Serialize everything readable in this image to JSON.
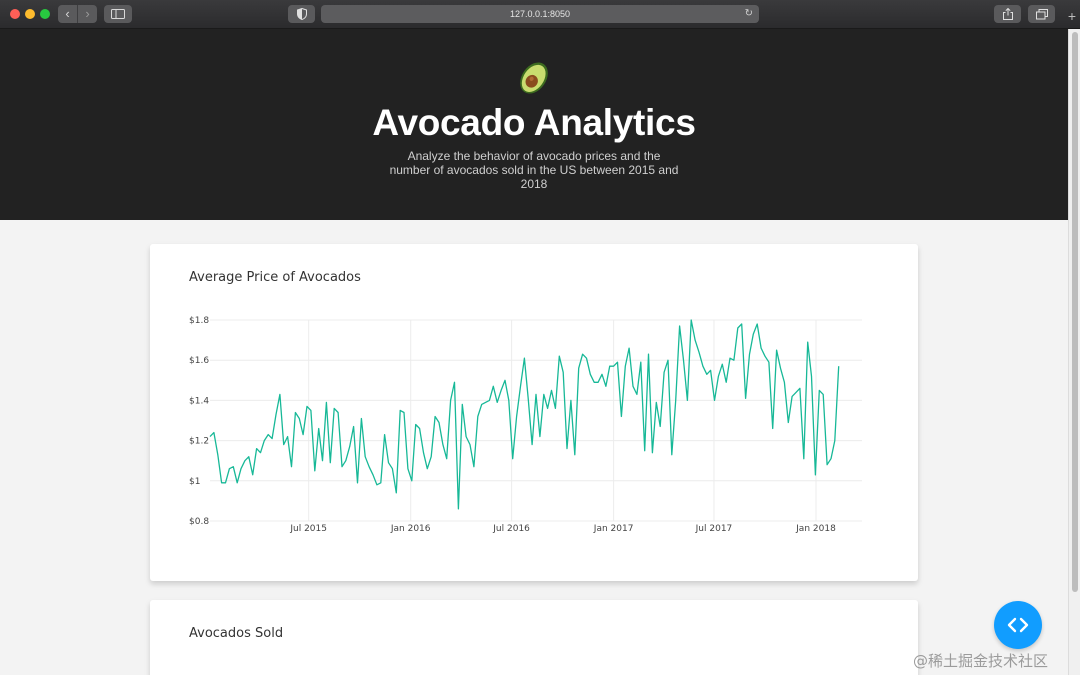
{
  "browser": {
    "url": "127.0.0.1:8050"
  },
  "header": {
    "emoji": "🥑",
    "title": "Avocado Analytics",
    "description": "Analyze the behavior of avocado prices and the number of avocados sold in the US between 2015 and 2018"
  },
  "cards": [
    {
      "title": "Average Price of Avocados"
    },
    {
      "title": "Avocados Sold"
    }
  ],
  "colors": {
    "header_bg": "#222222",
    "line": "#17b897",
    "fab": "#119dff"
  },
  "fab": {
    "icon": "code-brackets-icon"
  },
  "watermark": "@稀土掘金技术社区",
  "chart_data": {
    "type": "line",
    "title": "Average Price of Avocados",
    "ylim": [
      0.8,
      1.8
    ],
    "y_ticks": [
      "$0.8",
      "$1",
      "$1.2",
      "$1.4",
      "$1.6",
      "$1.8"
    ],
    "y_tick_values": [
      0.8,
      1.0,
      1.2,
      1.4,
      1.6,
      1.8
    ],
    "x_ticks": [
      "Jul 2015",
      "Jan 2016",
      "Jul 2016",
      "Jan 2017",
      "Jul 2017",
      "Jan 2018"
    ],
    "x_tick_values": [
      "2015-07-01",
      "2016-01-01",
      "2016-07-01",
      "2017-01-01",
      "2017-07-01",
      "2018-01-01"
    ],
    "xlim": [
      "2015-01-04",
      "2018-03-25"
    ],
    "grid": true,
    "series": [
      {
        "values": [
          1.22,
          1.24,
          1.13,
          0.99,
          0.99,
          1.06,
          1.07,
          0.99,
          1.06,
          1.1,
          1.12,
          1.03,
          1.16,
          1.14,
          1.2,
          1.23,
          1.21,
          1.33,
          1.43,
          1.18,
          1.22,
          1.07,
          1.34,
          1.31,
          1.23,
          1.37,
          1.35,
          1.05,
          1.26,
          1.1,
          1.39,
          1.09,
          1.36,
          1.34,
          1.07,
          1.1,
          1.17,
          1.27,
          0.99,
          1.31,
          1.12,
          1.07,
          1.03,
          0.98,
          0.99,
          1.23,
          1.09,
          1.06,
          0.94,
          1.35,
          1.34,
          1.06,
          1.0,
          1.28,
          1.26,
          1.14,
          1.06,
          1.12,
          1.32,
          1.29,
          1.18,
          1.11,
          1.4,
          1.49,
          0.86,
          1.38,
          1.22,
          1.18,
          1.07,
          1.32,
          1.38,
          1.39,
          1.4,
          1.47,
          1.39,
          1.45,
          1.5,
          1.4,
          1.11,
          1.32,
          1.47,
          1.61,
          1.41,
          1.18,
          1.43,
          1.22,
          1.43,
          1.36,
          1.45,
          1.36,
          1.62,
          1.54,
          1.16,
          1.4,
          1.13,
          1.56,
          1.63,
          1.61,
          1.53,
          1.49,
          1.49,
          1.53,
          1.47,
          1.57,
          1.57,
          1.59,
          1.32,
          1.57,
          1.66,
          1.47,
          1.43,
          1.59,
          1.15,
          1.63,
          1.14,
          1.39,
          1.27,
          1.54,
          1.6,
          1.13,
          1.4,
          1.77,
          1.6,
          1.4,
          1.8,
          1.7,
          1.64,
          1.57,
          1.53,
          1.55,
          1.4,
          1.52,
          1.58,
          1.49,
          1.61,
          1.6,
          1.76,
          1.78,
          1.41,
          1.63,
          1.73,
          1.78,
          1.66,
          1.62,
          1.59,
          1.26,
          1.65,
          1.56,
          1.49,
          1.29,
          1.42,
          1.44,
          1.46,
          1.11,
          1.69,
          1.52,
          1.03,
          1.45,
          1.43,
          1.08,
          1.11,
          1.2,
          1.57
        ]
      }
    ]
  }
}
